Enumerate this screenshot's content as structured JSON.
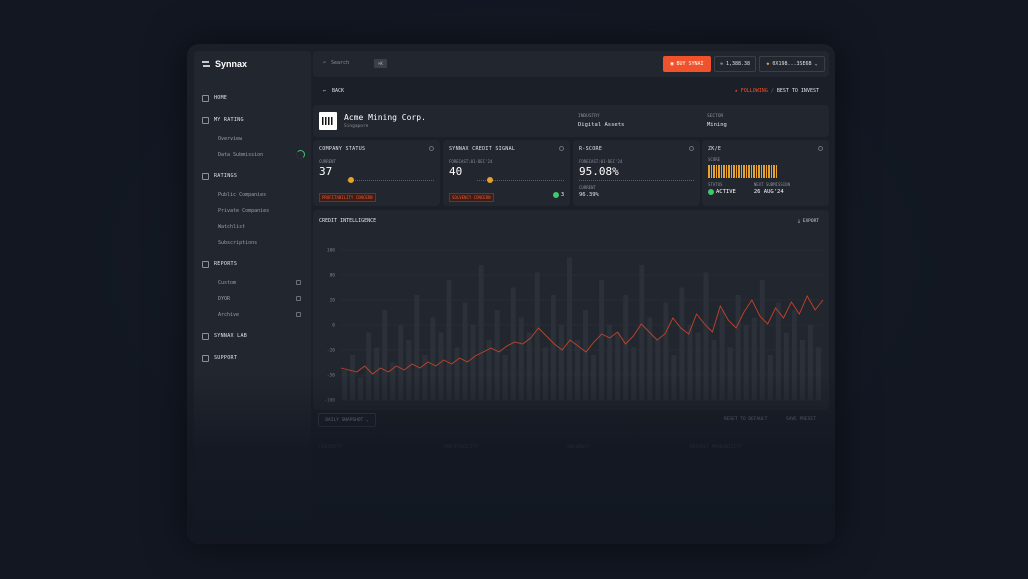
{
  "brand": {
    "name": "Synnax"
  },
  "sidebar": {
    "home": "HOME",
    "my_rating": "MY RATING",
    "my_rating_items": [
      "Overview",
      "Data Submission"
    ],
    "ratings": "RATINGS",
    "ratings_items": [
      "Public Companies",
      "Private Companies",
      "Watchlist",
      "Subscriptions"
    ],
    "reports": "REPORTS",
    "reports_items": [
      "Custom",
      "DYOR",
      "Archive"
    ],
    "lab": "SYNNAX LAB",
    "support": "SUPPORT"
  },
  "topbar": {
    "search": "Search",
    "shortcut": "⌘K",
    "buy": "BUY SYNAI",
    "balance": "1,388.38",
    "wallet": "0X198...3SE6B"
  },
  "nav": {
    "back": "BACK",
    "following": "FOLLOWING",
    "best": "BEST TO INVEST",
    "sep": "/"
  },
  "company": {
    "name": "Acme Mining Corp.",
    "location": "Singapore",
    "industry_label": "INDUSTRY",
    "industry": "Digital Assets",
    "sector_label": "SECTOR",
    "sector": "Mining"
  },
  "cards": {
    "status": {
      "title": "COMPANY STATUS",
      "label": "CURRENT",
      "value": "37",
      "badge": "PROFITABILITY CONCERN"
    },
    "signal": {
      "title": "SYNNAX CREDIT SIGNAL",
      "label": "FORECAST:01-DEC'24",
      "value": "40",
      "badge": "SOLVENCY CONCERN",
      "count": "3"
    },
    "rscore": {
      "title": "R-SCORE",
      "label": "FORECAST:01-DEC'24",
      "value": "95.08%",
      "current_label": "CURRENT",
      "current": "96.39%"
    },
    "zk": {
      "title": "ZK/E",
      "score_label": "SCORE",
      "status_label": "STATUS",
      "status": "ACTIVE",
      "next_label": "NEXT SUBMISSION",
      "next": "26 AUG'24"
    }
  },
  "chart": {
    "title": "CREDIT INTELLIGENCE",
    "export": "EXPORT"
  },
  "controls": {
    "snapshot": "DAILY SNAPSHOT",
    "reset": "RESET TO DEFAULT",
    "save": "SAVE PRESET"
  },
  "sections": [
    "LIQUIDITY",
    "PROFITABILITY",
    "SOLVENCY",
    "DEFAULT PROBABILITY"
  ],
  "chart_data": {
    "type": "line",
    "yticks": [
      "100",
      "80",
      "20",
      "0",
      "-20",
      "-50",
      "-100"
    ],
    "line_color": "#c2442a",
    "series_line": [
      -38,
      -40,
      -42,
      -36,
      -44,
      -38,
      -42,
      -36,
      -40,
      -34,
      -38,
      -32,
      -36,
      -30,
      -34,
      -28,
      -32,
      -26,
      -22,
      -18,
      -22,
      -16,
      -12,
      -14,
      -8,
      2,
      -6,
      -14,
      -20,
      -10,
      -16,
      -22,
      -12,
      -4,
      -8,
      -2,
      -14,
      -6,
      6,
      -2,
      -10,
      -4,
      12,
      2,
      -4,
      16,
      6,
      -2,
      24,
      10,
      2,
      18,
      30,
      14,
      6,
      22,
      12,
      28,
      16,
      34,
      20,
      30
    ],
    "series_bars": [
      20,
      30,
      15,
      45,
      35,
      60,
      25,
      50,
      40,
      70,
      30,
      55,
      45,
      80,
      35,
      65,
      50,
      90,
      40,
      60,
      30,
      75,
      55,
      45,
      85,
      35,
      70,
      50,
      95,
      40,
      60,
      30,
      80,
      50,
      45,
      70,
      35,
      90,
      55,
      40,
      65,
      30,
      75,
      50,
      45,
      85,
      40,
      60,
      35,
      70,
      50,
      55,
      80,
      30,
      65,
      45,
      60,
      40,
      50,
      35
    ]
  }
}
